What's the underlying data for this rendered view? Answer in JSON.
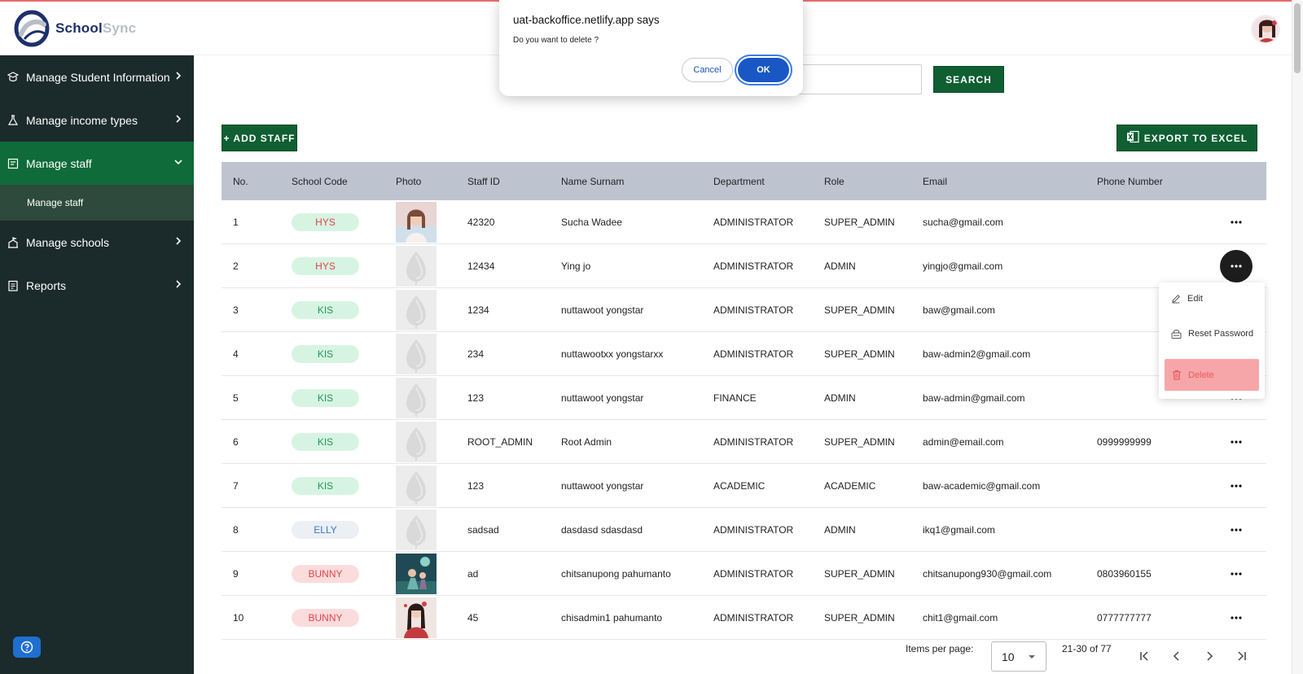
{
  "app": {
    "logo_part1": "School",
    "logo_part2": "Sync"
  },
  "sidebar": {
    "items": [
      {
        "label": "Manage Student Information",
        "icon": "student-icon"
      },
      {
        "label": "Manage income types",
        "icon": "flask-icon"
      },
      {
        "label": "Manage staff",
        "icon": "staff-board-icon",
        "active": true
      },
      {
        "label": "Manage schools",
        "icon": "school-icon"
      },
      {
        "label": "Reports",
        "icon": "report-icon"
      }
    ],
    "sub_item": "Manage staff"
  },
  "search": {
    "button_label": "SEARCH",
    "value": ""
  },
  "toolbar": {
    "add_label": "+ ADD STAFF",
    "export_label": "EXPORT TO EXCEL"
  },
  "table": {
    "headers": [
      "No.",
      "School Code",
      "Photo",
      "Staff ID",
      "Name Surnam",
      "Department",
      "Role",
      "Email",
      "Phone Number"
    ],
    "rows": [
      {
        "no": "1",
        "code": "HYS",
        "photo": "portrait-1",
        "id": "42320",
        "name": "Sucha Wadee",
        "dept": "ADMINISTRATOR",
        "role": "SUPER_ADMIN",
        "email": "sucha@gmail.com",
        "phone": ""
      },
      {
        "no": "2",
        "code": "HYS",
        "photo": "placeholder",
        "id": "12434",
        "name": "Ying jo",
        "dept": "ADMINISTRATOR",
        "role": "ADMIN",
        "email": "yingjo@gmail.com",
        "phone": ""
      },
      {
        "no": "3",
        "code": "KIS",
        "photo": "placeholder",
        "id": "1234",
        "name": "nuttawoot yongstar",
        "dept": "ADMINISTRATOR",
        "role": "SUPER_ADMIN",
        "email": "baw@gmail.com",
        "phone": ""
      },
      {
        "no": "4",
        "code": "KIS",
        "photo": "placeholder",
        "id": "234",
        "name": "nuttawootxx yongstarxx",
        "dept": "ADMINISTRATOR",
        "role": "SUPER_ADMIN",
        "email": "baw-admin2@gmail.com",
        "phone": ""
      },
      {
        "no": "5",
        "code": "KIS",
        "photo": "placeholder",
        "id": "123",
        "name": "nuttawoot yongstar",
        "dept": "FINANCE",
        "role": "ADMIN",
        "email": "baw-admin@gmail.com",
        "phone": ""
      },
      {
        "no": "6",
        "code": "KIS",
        "photo": "placeholder",
        "id": "ROOT_ADMIN",
        "name": "Root Admin",
        "dept": "ADMINISTRATOR",
        "role": "SUPER_ADMIN",
        "email": "admin@email.com",
        "phone": "0999999999"
      },
      {
        "no": "7",
        "code": "KIS",
        "photo": "placeholder",
        "id": "123",
        "name": "nuttawoot yongstar",
        "dept": "ACADEMIC",
        "role": "ACADEMIC",
        "email": "baw-academic@gmail.com",
        "phone": ""
      },
      {
        "no": "8",
        "code": "ELLY",
        "photo": "placeholder",
        "id": "sadsad",
        "name": "dasdasd sdasdasd",
        "dept": "ADMINISTRATOR",
        "role": "ADMIN",
        "email": "ikq1@gmail.com",
        "phone": ""
      },
      {
        "no": "9",
        "code": "BUNNY",
        "photo": "portrait-2",
        "id": "ad",
        "name": "chitsanupong pahumanto",
        "dept": "ADMINISTRATOR",
        "role": "SUPER_ADMIN",
        "email": "chitsanupong930@gmail.com",
        "phone": "0803960155"
      },
      {
        "no": "10",
        "code": "BUNNY",
        "photo": "portrait-3",
        "id": "45",
        "name": "chisadmin1 pahumanto",
        "dept": "ADMINISTRATOR",
        "role": "SUPER_ADMIN",
        "email": "chit1@gmail.com",
        "phone": "0777777777"
      }
    ]
  },
  "badge_colors": {
    "HYS": {
      "bg": "#d7f4e3",
      "fg": "#e0464b"
    },
    "KIS": {
      "bg": "#d7f4e3",
      "fg": "#1f9a55"
    },
    "ELLY": {
      "bg": "#eceff3",
      "fg": "#3a77c9"
    },
    "BUNNY": {
      "bg": "#fbdcdc",
      "fg": "#e0464b"
    }
  },
  "row_menu": {
    "edit": "Edit",
    "reset": "Reset Password",
    "delete": "Delete"
  },
  "pagination": {
    "items_label": "Items per page:",
    "per_page": "10",
    "range": "21-30 of 77"
  },
  "dialog": {
    "title": "uat-backoffice.netlify.app says",
    "message": "Do you want to delete ?",
    "cancel": "Cancel",
    "ok": "OK"
  },
  "colors": {
    "sidebar": "#1b2a2a",
    "accent_green": "#0f5f32",
    "active_nav": "#0f6b3a",
    "table_header": "#bdc4d0"
  }
}
